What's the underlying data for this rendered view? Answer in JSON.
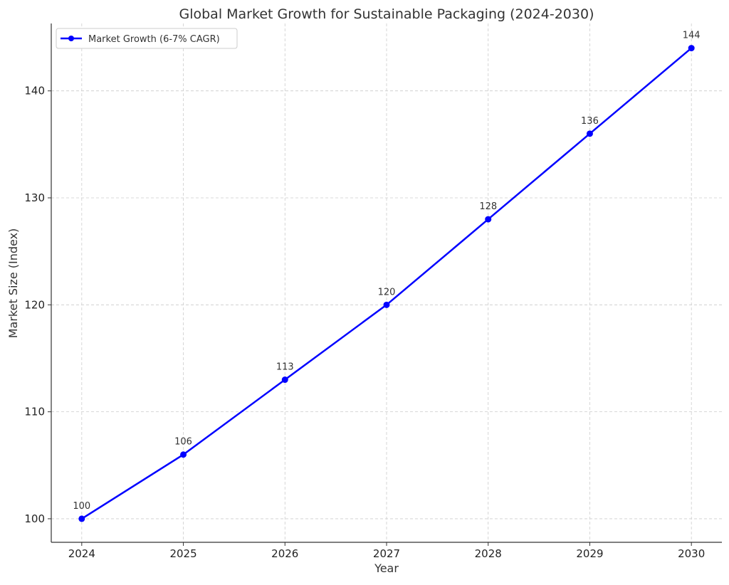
{
  "chart_data": {
    "type": "line",
    "title": "Global Market Growth for Sustainable Packaging (2024-2030)",
    "xlabel": "Year",
    "ylabel": "Market Size (Index)",
    "x": [
      2024,
      2025,
      2026,
      2027,
      2028,
      2029,
      2030
    ],
    "series": [
      {
        "name": "Market Growth (6-7% CAGR)",
        "values": [
          100,
          106,
          113,
          120,
          128,
          136,
          144
        ],
        "color": "#0000ff",
        "marker": "circle"
      }
    ],
    "data_labels": [
      "100",
      "106",
      "113",
      "120",
      "128",
      "136",
      "144"
    ],
    "xticks": [
      "2024",
      "2025",
      "2026",
      "2027",
      "2028",
      "2029",
      "2030"
    ],
    "yticks": [
      "100",
      "110",
      "120",
      "130",
      "140"
    ],
    "xlim": [
      2023.7,
      2030.3
    ],
    "ylim": [
      97.8,
      146.3
    ],
    "grid": true,
    "legend_position": "top-left"
  }
}
